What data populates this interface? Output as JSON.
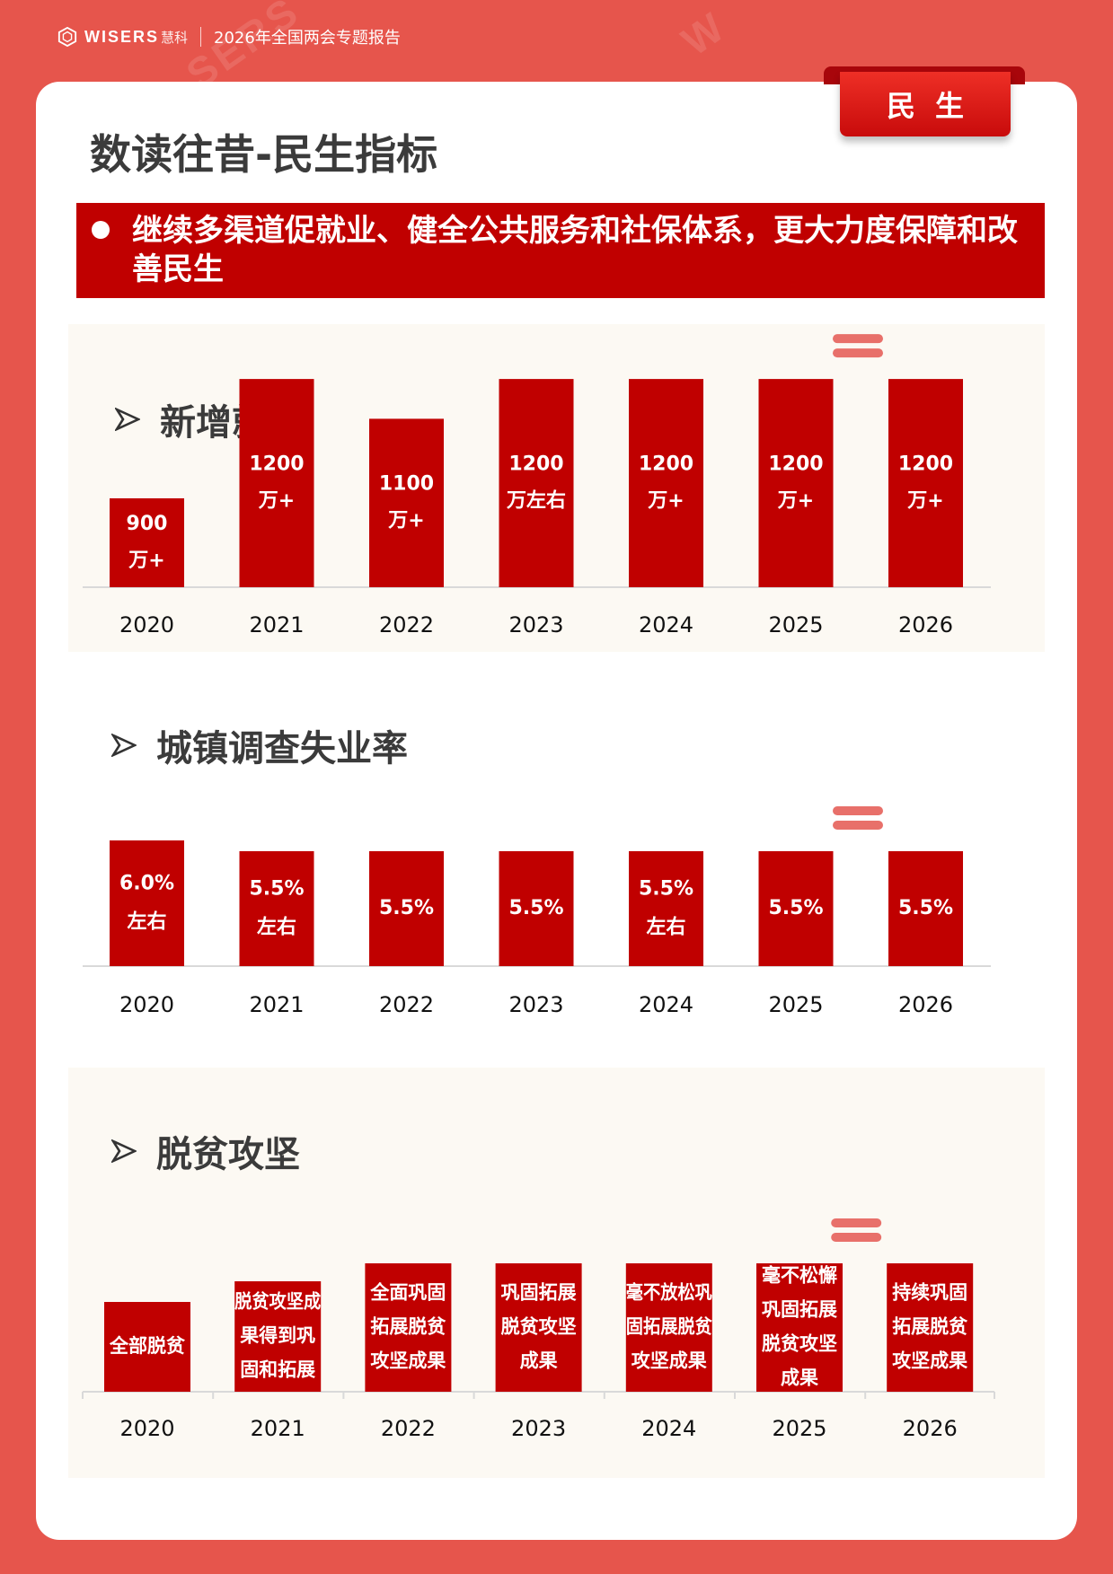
{
  "header": {
    "logo_text": "WISERS",
    "logo_cn": "慧科",
    "report_title": "2026年全国两会专题报告"
  },
  "tag": "民生",
  "page_title": "数读往昔-民生指标",
  "banner": "继续多渠道促就业、健全公共服务和社保体系，更大力度保障和改善民生",
  "colors": {
    "bar": "#c00000",
    "background": "#e6554c",
    "panel": "#fcf9f3",
    "highlight": "#e8706a"
  },
  "sections": {
    "employment": {
      "title": "新增就业"
    },
    "unemployment": {
      "title": "城镇调查失业率"
    },
    "poverty": {
      "title": "脱贫攻坚"
    }
  },
  "chart_data": [
    {
      "type": "bar",
      "title": "新增就业",
      "categories": [
        "2020",
        "2021",
        "2022",
        "2023",
        "2024",
        "2025",
        "2026"
      ],
      "values": [
        900,
        1200,
        1100,
        1200,
        1200,
        1200,
        1200
      ],
      "labels": [
        [
          "900",
          "万+"
        ],
        [
          "1200",
          "万+"
        ],
        [
          "1100",
          "万+"
        ],
        [
          "1200",
          "万左右"
        ],
        [
          "1200",
          "万+"
        ],
        [
          "1200",
          "万+"
        ],
        [
          "1200",
          "万+"
        ]
      ],
      "highlight_category": "2026"
    },
    {
      "type": "bar",
      "title": "城镇调查失业率",
      "categories": [
        "2020",
        "2021",
        "2022",
        "2023",
        "2024",
        "2025",
        "2026"
      ],
      "values": [
        6.0,
        5.5,
        5.5,
        5.5,
        5.5,
        5.5,
        5.5
      ],
      "labels": [
        [
          "6.0%",
          "左右"
        ],
        [
          "5.5%",
          "左右"
        ],
        [
          "5.5%"
        ],
        [
          "5.5%"
        ],
        [
          "5.5%",
          "左右"
        ],
        [
          "5.5%"
        ],
        [
          "5.5%"
        ]
      ],
      "highlight_category": "2026"
    },
    {
      "type": "bar",
      "title": "脱贫攻坚",
      "categories": [
        "2020",
        "2021",
        "2022",
        "2023",
        "2024",
        "2025",
        "2026"
      ],
      "values": [
        1,
        1.23,
        1.43,
        1.43,
        1.43,
        1.43,
        1.43
      ],
      "labels": [
        [
          "全部脱贫"
        ],
        [
          "脱贫攻坚成",
          "果得到巩",
          "固和拓展"
        ],
        [
          "全面巩固",
          "拓展脱贫",
          "攻坚成果"
        ],
        [
          "巩固拓展",
          "脱贫攻坚",
          "成果"
        ],
        [
          "毫不放松巩",
          "固拓展脱贫",
          "攻坚成果"
        ],
        [
          "毫不松懈",
          "巩固拓展",
          "脱贫攻坚",
          "成果"
        ],
        [
          "持续巩固",
          "拓展脱贫",
          "攻坚成果"
        ]
      ],
      "highlight_category": "2026"
    }
  ]
}
